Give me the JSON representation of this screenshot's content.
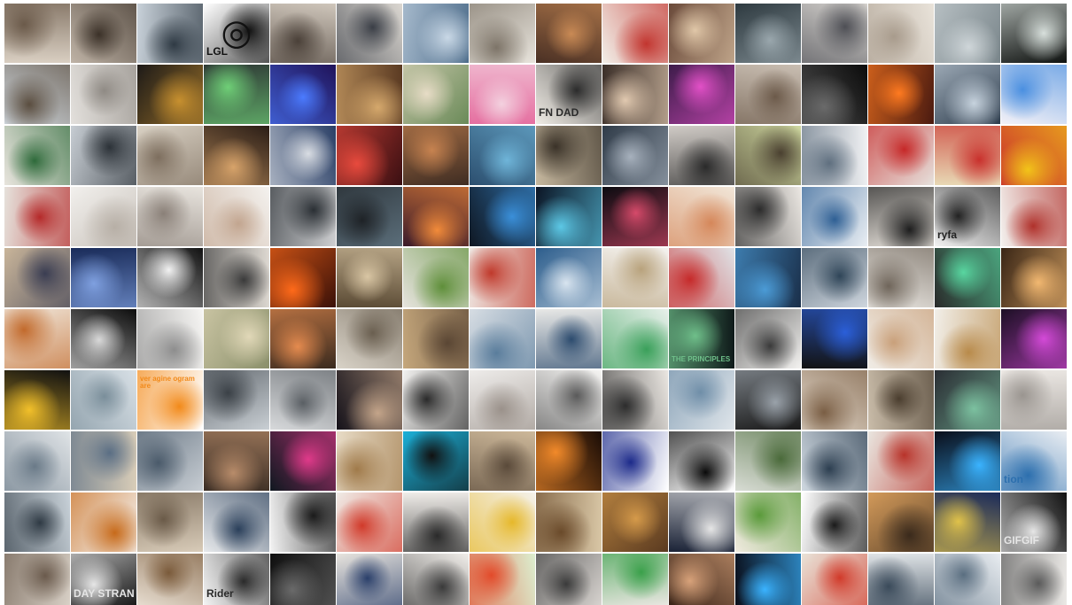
{
  "mosaic": {
    "cols": 16,
    "rows": 10,
    "tiles": [
      {
        "c": [
          "#d9cfc2",
          "#6b5a4a"
        ]
      },
      {
        "c": [
          "#bfb3a6",
          "#3b3128"
        ]
      },
      {
        "c": [
          "#c8d1d9",
          "#2f3a44"
        ]
      },
      {
        "c": [
          "#ffffff",
          "#111111"
        ],
        "icon": "spiral-icon",
        "glyph": "◎",
        "label": "LGL"
      },
      {
        "c": [
          "#cfc6bb",
          "#4a4038"
        ]
      },
      {
        "c": [
          "#dcd8d2",
          "#3a3e46"
        ]
      },
      {
        "c": [
          "#4d6c8a",
          "#c9d8e6"
        ]
      },
      {
        "c": [
          "#e8e4dc",
          "#7d7468"
        ]
      },
      {
        "c": [
          "#4a3024",
          "#c98a55"
        ]
      },
      {
        "c": [
          "#f2efe8",
          "#c2352f"
        ]
      },
      {
        "c": [
          "#6a4a3a",
          "#e0c7a8"
        ]
      },
      {
        "c": [
          "#2e3a40",
          "#9aa7ad"
        ]
      },
      {
        "c": [
          "#d6d3cf",
          "#4e4f55"
        ]
      },
      {
        "c": [
          "#e9e3da",
          "#a89b8c"
        ]
      },
      {
        "c": [
          "#79858a",
          "#cfd6d9"
        ]
      },
      {
        "c": [
          "#0f1210",
          "#d8e0dc"
        ]
      },
      {
        "c": [
          "#cfd6dc",
          "#5a4d3f"
        ]
      },
      {
        "c": [
          "#e3e0dc",
          "#8f8a84"
        ]
      },
      {
        "c": [
          "#1d1a18",
          "#c7902f"
        ]
      },
      {
        "c": [
          "#2f3a36",
          "#6fcf77"
        ]
      },
      {
        "c": [
          "#20135a",
          "#4b7bff"
        ]
      },
      {
        "c": [
          "#5a3a22",
          "#d5a86c"
        ]
      },
      {
        "c": [
          "#6a8a58",
          "#e7dcc6"
        ]
      },
      {
        "c": [
          "#e56fa0",
          "#f3d1df"
        ]
      },
      {
        "c": [
          "#f1ede6",
          "#2b2b2b"
        ],
        "label": "FN DAD"
      },
      {
        "c": [
          "#3a2e28",
          "#e1c9b0"
        ]
      },
      {
        "c": [
          "#3d1c4a",
          "#e250c7"
        ]
      },
      {
        "c": [
          "#c9beb2",
          "#6c5a4a"
        ]
      },
      {
        "c": [
          "#0b0b0b",
          "#6a6a6a"
        ]
      },
      {
        "c": [
          "#4a1a10",
          "#ff7a20"
        ]
      },
      {
        "c": [
          "#2e3d4d",
          "#c7d3de"
        ]
      },
      {
        "c": [
          "#f3f1f7",
          "#4a8fe0"
        ]
      },
      {
        "c": [
          "#e9e5de",
          "#2e6a3a"
        ]
      },
      {
        "c": [
          "#c7cdd3",
          "#2c3238"
        ]
      },
      {
        "c": [
          "#d9d1c4",
          "#7d6e5e"
        ]
      },
      {
        "c": [
          "#2a1d16",
          "#d7a36a"
        ]
      },
      {
        "c": [
          "#2a3f66",
          "#d9dde3"
        ]
      },
      {
        "c": [
          "#3a0f12",
          "#e84a3d"
        ]
      },
      {
        "c": [
          "#3e2c22",
          "#c78350"
        ]
      },
      {
        "c": [
          "#2c4f6f",
          "#6fb5d9"
        ]
      },
      {
        "c": [
          "#c6b89f",
          "#3a3228"
        ]
      },
      {
        "c": [
          "#2f3b48",
          "#a7b1bd"
        ]
      },
      {
        "c": [
          "#d0cbc6",
          "#2a2a2a"
        ]
      },
      {
        "c": [
          "#cfd8a0",
          "#4a4030"
        ]
      },
      {
        "c": [
          "#f1f2f4",
          "#5f6f7f"
        ]
      },
      {
        "c": [
          "#e6e1dc",
          "#c62828"
        ]
      },
      {
        "c": [
          "#e8d9b5",
          "#c9302c"
        ]
      },
      {
        "c": [
          "#c9302c",
          "#f2c419"
        ]
      },
      {
        "c": [
          "#e6e2dc",
          "#b52a2a"
        ]
      },
      {
        "c": [
          "#f2f0ed",
          "#b7afa6"
        ]
      },
      {
        "c": [
          "#e8e4de",
          "#8a8078"
        ]
      },
      {
        "c": [
          "#f4f2ef",
          "#c2a58f"
        ]
      },
      {
        "c": [
          "#cfd0d2",
          "#2a2f34"
        ]
      },
      {
        "c": [
          "#5b6e7a",
          "#1e2226"
        ]
      },
      {
        "c": [
          "#3b1a2a",
          "#f28b3a"
        ]
      },
      {
        "c": [
          "#0f1722",
          "#3a8fd9"
        ]
      },
      {
        "c": [
          "#0b1424",
          "#5cc8e6"
        ]
      },
      {
        "c": [
          "#0b0b10",
          "#d64a6a"
        ]
      },
      {
        "c": [
          "#f1e6d8",
          "#d5875a"
        ]
      },
      {
        "c": [
          "#ebe7e2",
          "#2b2b2b"
        ]
      },
      {
        "c": [
          "#e9eef3",
          "#2e5f94"
        ]
      },
      {
        "c": [
          "#e6e1da",
          "#1d1d1d"
        ]
      },
      {
        "c": [
          "#f2f2f2",
          "#222222"
        ],
        "label": "ryfa"
      },
      {
        "c": [
          "#f3f1ee",
          "#b0312b"
        ]
      },
      {
        "c": [
          "#c9b59a",
          "#3a3d52"
        ]
      },
      {
        "c": [
          "#1a2c5a",
          "#7fa0e0"
        ]
      },
      {
        "c": [
          "#111111",
          "#f2f2f2"
        ]
      },
      {
        "c": [
          "#ded9d2",
          "#3a3a3a"
        ]
      },
      {
        "c": [
          "#3a1008",
          "#ff6a1a"
        ]
      },
      {
        "c": [
          "#5a4a34",
          "#d9c6a4"
        ]
      },
      {
        "c": [
          "#e6e3dd",
          "#5f8f3a"
        ]
      },
      {
        "c": [
          "#efe9e4",
          "#c0392b"
        ]
      },
      {
        "c": [
          "#2c5d8c",
          "#d8e4ef"
        ]
      },
      {
        "c": [
          "#f4f2ef",
          "#b8a27c"
        ]
      },
      {
        "c": [
          "#dfe3e7",
          "#c62a2a"
        ]
      },
      {
        "c": [
          "#1a2f4a",
          "#4b9bd6"
        ]
      },
      {
        "c": [
          "#cfd6de",
          "#2f4558"
        ]
      },
      {
        "c": [
          "#ebe8e3",
          "#6f655a"
        ]
      },
      {
        "c": [
          "#2a2a2a",
          "#58d6a0"
        ]
      },
      {
        "c": [
          "#3a2616",
          "#f2b871"
        ]
      },
      {
        "c": [
          "#f1eadf",
          "#c26a2c"
        ]
      },
      {
        "c": [
          "#0d0d0d",
          "#d9d9d9"
        ]
      },
      {
        "c": [
          "#f7f6f4",
          "#8d8d8d"
        ]
      },
      {
        "c": [
          "#8a8f6a",
          "#e1d8b8"
        ]
      },
      {
        "c": [
          "#3a2a1e",
          "#e58b4f"
        ]
      },
      {
        "c": [
          "#d9d3c8",
          "#6a5f50"
        ]
      },
      {
        "c": [
          "#c5a77c",
          "#5a4634"
        ]
      },
      {
        "c": [
          "#d7dde3",
          "#5a7d9c"
        ]
      },
      {
        "c": [
          "#e8e8e6",
          "#2c4b6e"
        ]
      },
      {
        "c": [
          "#e7f0ea",
          "#3aa05a"
        ]
      },
      {
        "c": [
          "#0f1a1a",
          "#6fbf8a"
        ],
        "label": "THE PRINCIPLES"
      },
      {
        "c": [
          "#f3f2f0",
          "#3a3a3a"
        ]
      },
      {
        "c": [
          "#131313",
          "#2b5fd9"
        ]
      },
      {
        "c": [
          "#f0ece6",
          "#c9a07a"
        ]
      },
      {
        "c": [
          "#f2efe9",
          "#b88a4a"
        ]
      },
      {
        "c": [
          "#1c0f24",
          "#d44ad8"
        ]
      },
      {
        "c": [
          "#111111",
          "#f2c02a"
        ]
      },
      {
        "c": [
          "#d8e0e6",
          "#7a8e9a"
        ]
      },
      {
        "c": [
          "#ffffff",
          "#f28a1a"
        ],
        "label": "ver agine ogram are"
      },
      {
        "c": [
          "#c9cfd4",
          "#3a4046"
        ]
      },
      {
        "c": [
          "#d7d9db",
          "#5a5f64"
        ]
      },
      {
        "c": [
          "#15121a",
          "#c4a58a"
        ]
      },
      {
        "c": [
          "#f2f1ef",
          "#2a2a2a"
        ]
      },
      {
        "c": [
          "#eeecea",
          "#9a918a"
        ]
      },
      {
        "c": [
          "#f6f5f3",
          "#5a5a5a"
        ]
      },
      {
        "c": [
          "#eae6e1",
          "#2c2c2c"
        ]
      },
      {
        "c": [
          "#dfe5ea",
          "#6f8ea8"
        ]
      },
      {
        "c": [
          "#1a1a1a",
          "#9aa2aa"
        ]
      },
      {
        "c": [
          "#e1d6c8",
          "#7a5e44"
        ]
      },
      {
        "c": [
          "#c9bca9",
          "#4a3d2e"
        ]
      },
      {
        "c": [
          "#2a2e34",
          "#7cc1a0"
        ]
      },
      {
        "c": [
          "#ece8e4",
          "#9a9590"
        ]
      },
      {
        "c": [
          "#dfe3e6",
          "#6a7a88"
        ]
      },
      {
        "c": [
          "#d9cdb8",
          "#5a6e84"
        ]
      },
      {
        "c": [
          "#c7cdd3",
          "#4a5a6a"
        ]
      },
      {
        "c": [
          "#3a2d24",
          "#b88c6a"
        ]
      },
      {
        "c": [
          "#101820",
          "#e03a8a"
        ]
      },
      {
        "c": [
          "#e8dcc7",
          "#a07a4a"
        ]
      },
      {
        "c": [
          "#1bb0d8",
          "#111111"
        ]
      },
      {
        "c": [
          "#cdb89a",
          "#5a4a3a"
        ]
      },
      {
        "c": [
          "#1a0c06",
          "#f28a2a"
        ]
      },
      {
        "c": [
          "#ffffff",
          "#1c2a8a"
        ]
      },
      {
        "c": [
          "#ffffff",
          "#0a0a0a"
        ]
      },
      {
        "c": [
          "#d8dcd4",
          "#4a6a3a"
        ]
      },
      {
        "c": [
          "#cfd8e0",
          "#2c3e50"
        ]
      },
      {
        "c": [
          "#e9e5df",
          "#b8332a"
        ]
      },
      {
        "c": [
          "#0a0e1a",
          "#3ab3ff"
        ]
      },
      {
        "c": [
          "#e9edf2",
          "#2c6fae"
        ],
        "label": "tion"
      },
      {
        "c": [
          "#c9d2d9",
          "#2f3a44"
        ]
      },
      {
        "c": [
          "#f5f4f2",
          "#c76a1a"
        ]
      },
      {
        "c": [
          "#d8cbb8",
          "#6a5a48"
        ]
      },
      {
        "c": [
          "#e7e9eb",
          "#2a3f5a"
        ]
      },
      {
        "c": [
          "#f3f3f3",
          "#1a1a1a"
        ]
      },
      {
        "c": [
          "#f0ece7",
          "#d13a2a"
        ]
      },
      {
        "c": [
          "#f0ede9",
          "#2a2a2a"
        ]
      },
      {
        "c": [
          "#f4f1ea",
          "#e6b82a"
        ]
      },
      {
        "c": [
          "#d9c7a6",
          "#6a4a2a"
        ]
      },
      {
        "c": [
          "#5a3a20",
          "#d59a4a"
        ]
      },
      {
        "c": [
          "#1a2236",
          "#e6e6e6"
        ]
      },
      {
        "c": [
          "#f0eadf",
          "#5a9a3a"
        ]
      },
      {
        "c": [
          "#ffffff",
          "#1a1a1a"
        ]
      },
      {
        "c": [
          "#d39a5a",
          "#3a2a1c"
        ]
      },
      {
        "c": [
          "#1a2a5a",
          "#e0c24a"
        ]
      },
      {
        "c": [
          "#121212",
          "#e6e6e6"
        ],
        "label": "GIFGIF"
      },
      {
        "c": [
          "#d8d0c6",
          "#6a5a4c"
        ]
      },
      {
        "c": [
          "#1a1a1a",
          "#e6e6e6"
        ],
        "label": "DAY STRANGER"
      },
      {
        "c": [
          "#e6dccf",
          "#7a5a3a"
        ]
      },
      {
        "c": [
          "#f4f4f4",
          "#2a2a2a"
        ],
        "label": "Rider"
      },
      {
        "c": [
          "#0f0f0f",
          "#6a6a6a"
        ]
      },
      {
        "c": [
          "#e8e4de",
          "#2a3f6a"
        ]
      },
      {
        "c": [
          "#f1eeea",
          "#3a3a3a"
        ]
      },
      {
        "c": [
          "#dcefd0",
          "#e24a2a"
        ]
      },
      {
        "c": [
          "#d7d3cf",
          "#3a3a3a"
        ]
      },
      {
        "c": [
          "#e8e6e0",
          "#3aa04a"
        ]
      },
      {
        "c": [
          "#3a2418",
          "#d8a27a"
        ]
      },
      {
        "c": [
          "#0a0e1a",
          "#3ab3ff"
        ]
      },
      {
        "c": [
          "#e9e3d8",
          "#d13a2a"
        ]
      },
      {
        "c": [
          "#dfe3e6",
          "#3a4a5a"
        ]
      },
      {
        "c": [
          "#e9edf1",
          "#5a6e80"
        ]
      },
      {
        "c": [
          "#ebe9e6",
          "#5a5a5a"
        ]
      }
    ]
  }
}
